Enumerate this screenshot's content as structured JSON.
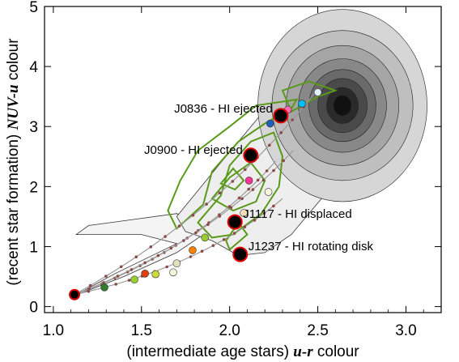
{
  "chart_data": {
    "type": "scatter",
    "xlabel_plain": "(intermediate age stars) ",
    "xlabel_italic": "u-r",
    "xlabel_suffix": " colour",
    "ylabel_plain": "(recent star formation) ",
    "ylabel_italic": "NUV-u",
    "ylabel_suffix": " colour",
    "xlim": [
      0.95,
      3.2
    ],
    "ylim": [
      -0.1,
      5.0
    ],
    "xticks": [
      1.0,
      1.5,
      2.0,
      2.5,
      3.0
    ],
    "xtick_labels": [
      "1.0",
      "1.5",
      "2.0",
      "2.5",
      "3.0"
    ],
    "yticks": [
      0,
      1,
      2,
      3,
      4,
      5
    ],
    "ytick_labels": [
      "0",
      "1",
      "2",
      "3",
      "4",
      "5"
    ],
    "grid": false,
    "legend": "none",
    "colors": {
      "contour_green": "#5a9a1a",
      "density_dark": "#1a1a1a",
      "track_line": "#999999",
      "galaxy_fill": "#000000",
      "galaxy_edge": "#e00000"
    },
    "galaxies": [
      {
        "label": "J0836 - HI ejected",
        "x": 2.29,
        "y": 3.18
      },
      {
        "label": "J0900 - HI ejected",
        "x": 2.12,
        "y": 2.52
      },
      {
        "label": "J1117 - HI displaced",
        "x": 2.03,
        "y": 1.41
      },
      {
        "label": "J1237 - HI rotating disk",
        "x": 2.06,
        "y": 0.87
      }
    ],
    "track_start": {
      "x": 1.12,
      "y": 0.2
    },
    "tracks": [
      {
        "end": [
          2.48,
          3.55
        ],
        "color": "#999999"
      },
      {
        "end": [
          2.26,
          2.42
        ],
        "color": "#999999"
      },
      {
        "end": [
          2.36,
          2.6
        ],
        "color": "#999999"
      },
      {
        "end": [
          2.3,
          1.8
        ],
        "color": "#999999"
      }
    ],
    "track_points": [
      {
        "x": 1.29,
        "y": 0.32,
        "c": "#2f7d2f"
      },
      {
        "x": 1.46,
        "y": 0.45,
        "c": "#9acd32"
      },
      {
        "x": 1.52,
        "y": 0.55,
        "c": "#e04010"
      },
      {
        "x": 1.58,
        "y": 0.54,
        "c": "#cddc39"
      },
      {
        "x": 1.7,
        "y": 0.72,
        "c": "#e0e0c0"
      },
      {
        "x": 1.68,
        "y": 0.57,
        "c": "#f5f5dc"
      },
      {
        "x": 1.79,
        "y": 0.94,
        "c": "#ff7f00"
      },
      {
        "x": 1.86,
        "y": 1.15,
        "c": "#9acd32"
      },
      {
        "x": 2.08,
        "y": 1.56,
        "c": "#f5deb3"
      },
      {
        "x": 2.22,
        "y": 1.91,
        "c": "#f5f5dc"
      },
      {
        "x": 2.11,
        "y": 2.1,
        "c": "#ff3399"
      },
      {
        "x": 2.23,
        "y": 3.05,
        "c": "#1f5fbf"
      },
      {
        "x": 2.33,
        "y": 3.28,
        "c": "#ff69b4"
      },
      {
        "x": 2.41,
        "y": 3.38,
        "c": "#00bfff"
      },
      {
        "x": 2.5,
        "y": 3.57,
        "c": "#e0f0ff"
      }
    ]
  }
}
